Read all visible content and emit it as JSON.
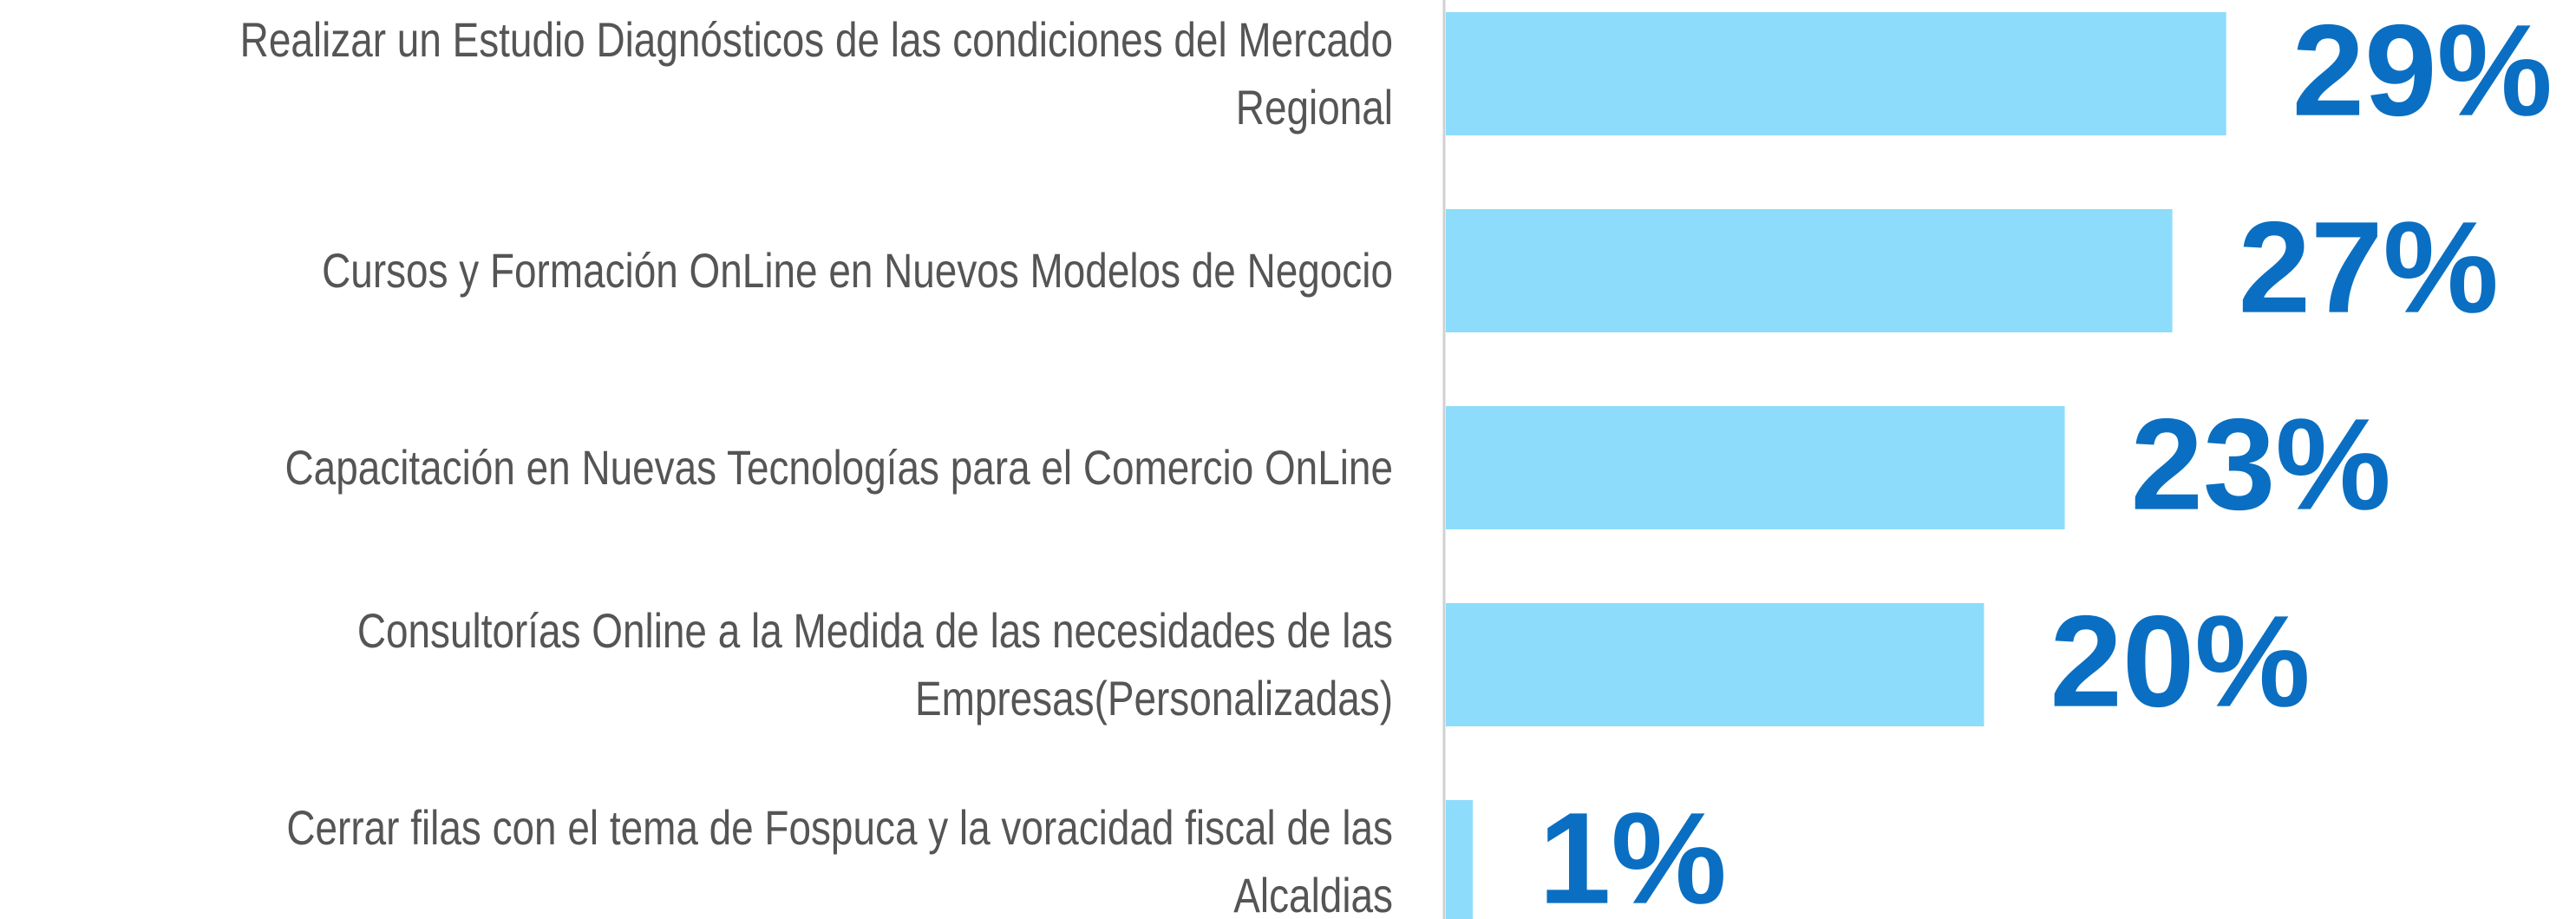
{
  "chart_data": {
    "type": "bar",
    "orientation": "horizontal",
    "categories": [
      "Realizar un Estudio Diagnósticos de las condiciones del Mercado\nRegional",
      "Cursos y Formación OnLine en Nuevos Modelos de Negocio",
      "Capacitación en Nuevas Tecnologías para el Comercio OnLine",
      "Consultorías Online a la Medida de las necesidades de las\nEmpresas(Personalizadas)",
      "Cerrar filas con el tema de Fospuca y la voracidad fiscal de las\nAlcaldias"
    ],
    "values": [
      29,
      27,
      23,
      20,
      1
    ],
    "value_labels": [
      "29%",
      "27%",
      "23%",
      "20%",
      "1%"
    ],
    "color": "#8ddcfc",
    "label_color": "#0a6fc2",
    "xlim": [
      0,
      42
    ]
  }
}
